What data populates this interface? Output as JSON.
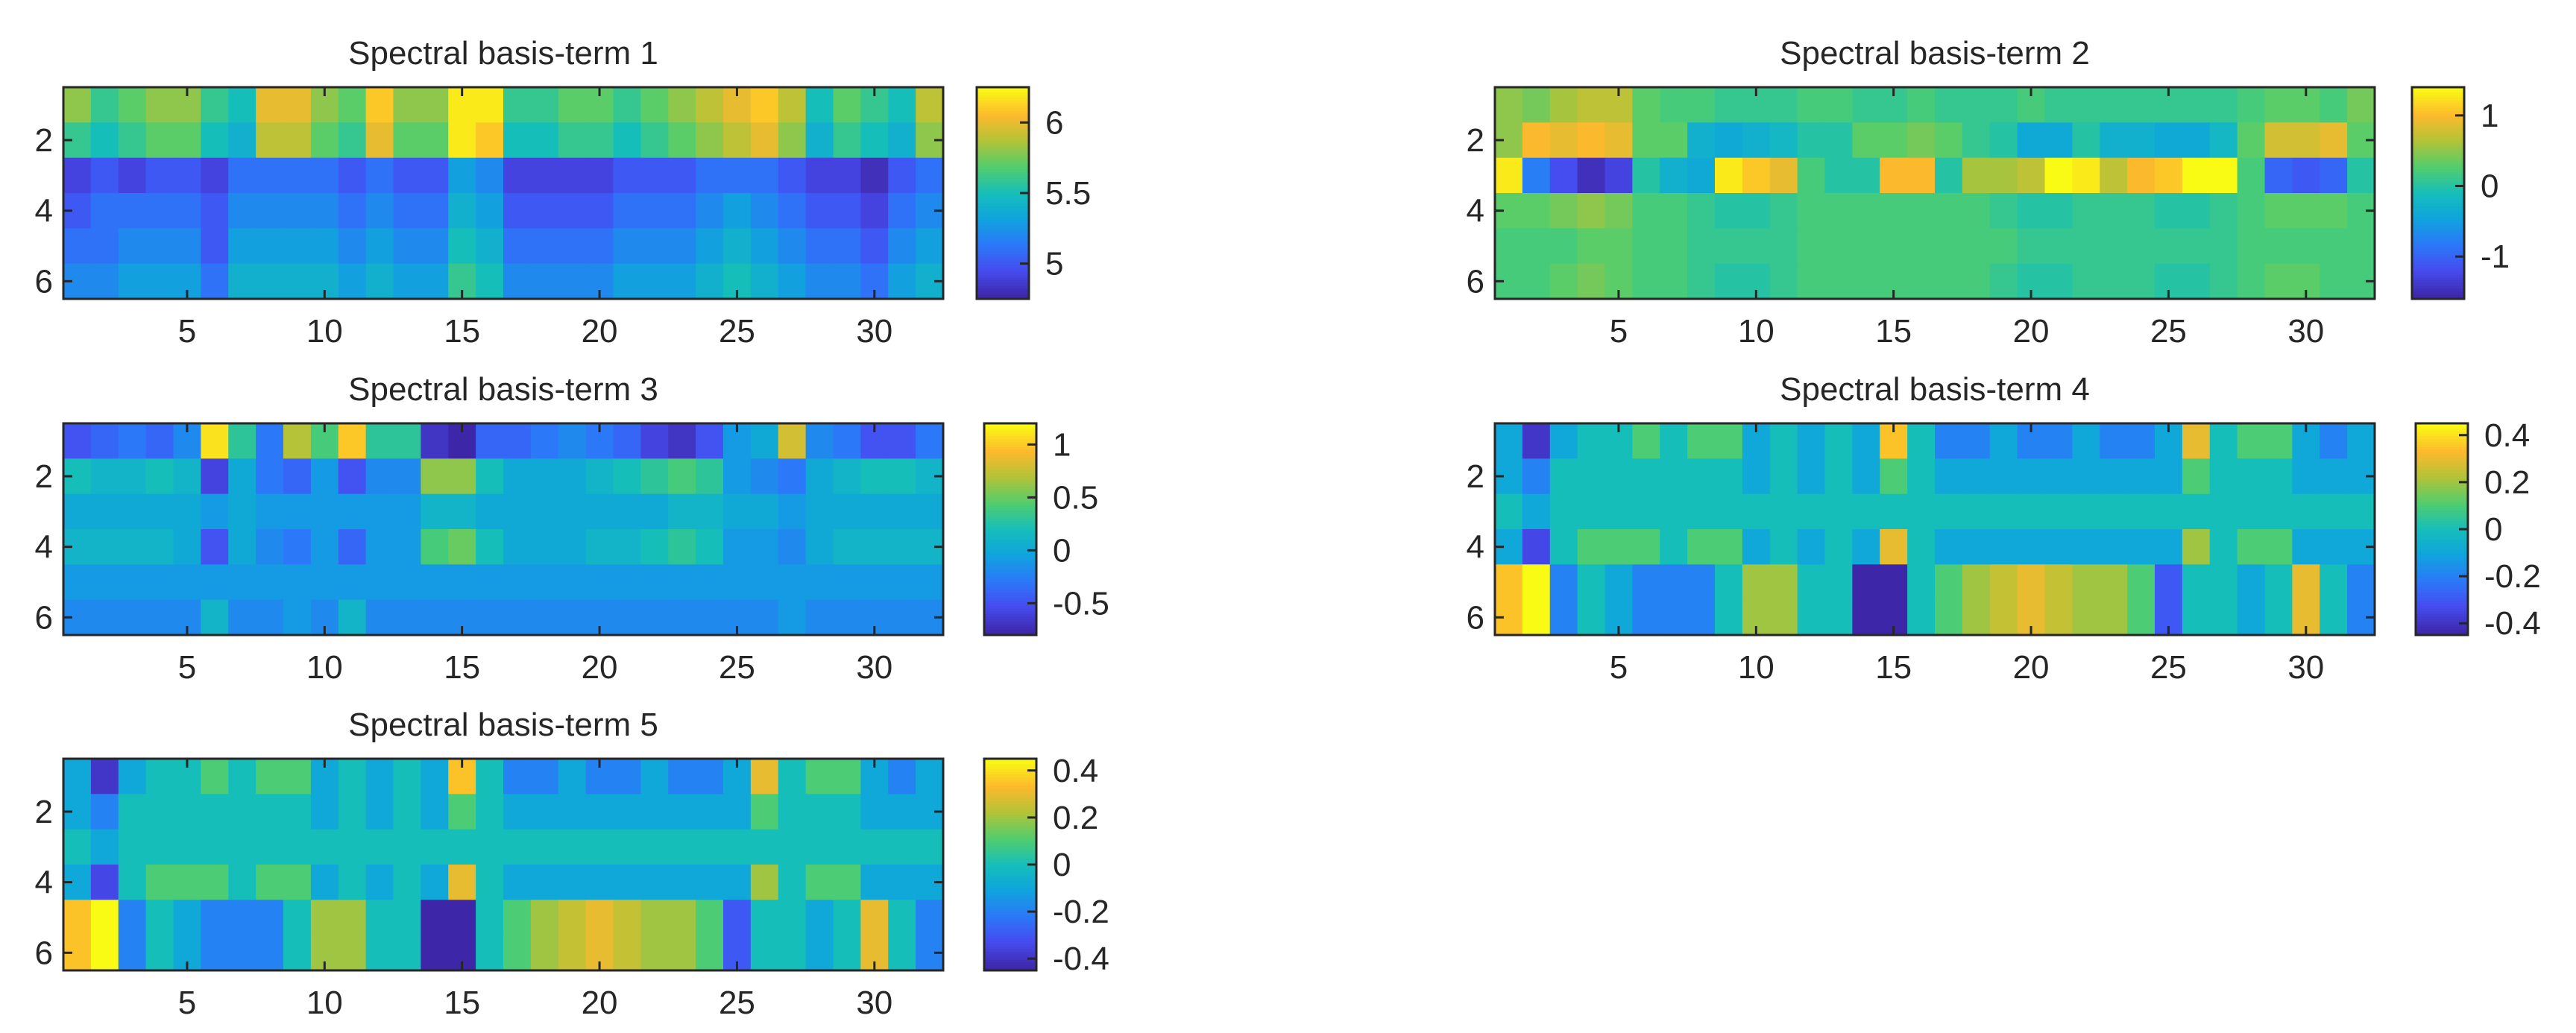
{
  "figure": {
    "layout": "3x2 grid of heatmaps with colorbars",
    "colormap": "parula"
  },
  "chart_data": [
    {
      "type": "heatmap",
      "title": "Spectral basis-term 1",
      "rows": 6,
      "cols": 32,
      "x_ticks": [
        5,
        10,
        15,
        20,
        25,
        30
      ],
      "y_ticks": [
        2,
        4,
        6
      ],
      "clim": [
        4.75,
        6.25
      ],
      "colorbar_ticks": [
        5,
        5.5,
        6
      ],
      "colorbar_labels": [
        "5",
        "5.5",
        "6"
      ],
      "values": [
        [
          5.8,
          5.6,
          5.7,
          5.8,
          5.8,
          5.6,
          5.5,
          6.0,
          6.0,
          5.8,
          5.7,
          6.1,
          5.8,
          5.8,
          6.2,
          6.2,
          5.6,
          5.6,
          5.7,
          5.7,
          5.6,
          5.7,
          5.8,
          5.9,
          6.0,
          6.1,
          5.9,
          5.5,
          5.7,
          5.6,
          5.5,
          5.9
        ],
        [
          5.6,
          5.5,
          5.6,
          5.7,
          5.7,
          5.5,
          5.4,
          5.9,
          5.9,
          5.7,
          5.6,
          6.0,
          5.7,
          5.7,
          6.2,
          6.1,
          5.5,
          5.5,
          5.6,
          5.6,
          5.5,
          5.6,
          5.7,
          5.8,
          5.9,
          6.0,
          5.8,
          5.4,
          5.6,
          5.5,
          5.4,
          5.8
        ],
        [
          4.9,
          5.0,
          4.9,
          5.0,
          5.0,
          4.9,
          5.1,
          5.1,
          5.1,
          5.1,
          5.0,
          5.1,
          5.0,
          5.0,
          5.3,
          5.2,
          4.9,
          4.9,
          4.9,
          4.9,
          5.0,
          5.0,
          5.0,
          5.1,
          5.1,
          5.1,
          5.0,
          4.9,
          4.9,
          4.8,
          5.0,
          5.1
        ],
        [
          5.0,
          5.1,
          5.1,
          5.1,
          5.1,
          5.0,
          5.2,
          5.2,
          5.2,
          5.2,
          5.1,
          5.2,
          5.1,
          5.1,
          5.4,
          5.3,
          5.0,
          5.0,
          5.0,
          5.0,
          5.1,
          5.1,
          5.1,
          5.2,
          5.3,
          5.2,
          5.1,
          5.0,
          5.0,
          4.9,
          5.1,
          5.2
        ],
        [
          5.1,
          5.1,
          5.2,
          5.2,
          5.2,
          5.0,
          5.3,
          5.3,
          5.3,
          5.3,
          5.2,
          5.3,
          5.2,
          5.2,
          5.5,
          5.4,
          5.1,
          5.1,
          5.1,
          5.1,
          5.2,
          5.2,
          5.2,
          5.3,
          5.4,
          5.3,
          5.2,
          5.1,
          5.1,
          5.0,
          5.2,
          5.3
        ],
        [
          5.2,
          5.2,
          5.3,
          5.3,
          5.3,
          5.1,
          5.4,
          5.4,
          5.4,
          5.4,
          5.3,
          5.4,
          5.3,
          5.3,
          5.6,
          5.5,
          5.2,
          5.2,
          5.2,
          5.2,
          5.3,
          5.3,
          5.3,
          5.4,
          5.5,
          5.4,
          5.3,
          5.2,
          5.2,
          5.1,
          5.3,
          5.4
        ]
      ]
    },
    {
      "type": "heatmap",
      "title": "Spectral basis-term 2",
      "rows": 6,
      "cols": 32,
      "x_ticks": [
        5,
        10,
        15,
        20,
        25,
        30
      ],
      "y_ticks": [
        2,
        4,
        6
      ],
      "clim": [
        -1.6,
        1.4
      ],
      "colorbar_ticks": [
        1,
        0,
        -1
      ],
      "colorbar_labels": [
        "1",
        "0",
        "-1"
      ],
      "values": [
        [
          0.5,
          0.4,
          0.6,
          0.7,
          0.7,
          0.3,
          0.2,
          0.2,
          0.1,
          0.1,
          0.1,
          0.2,
          0.2,
          0.1,
          0.1,
          0.2,
          0.1,
          0.1,
          0.1,
          0.2,
          0.1,
          0.1,
          0.1,
          0.1,
          0.1,
          0.1,
          0.1,
          0.2,
          0.3,
          0.3,
          0.2,
          0.4
        ],
        [
          0.5,
          1.0,
          0.9,
          1.0,
          0.9,
          0.3,
          0.3,
          -0.3,
          -0.4,
          -0.3,
          -0.2,
          0.0,
          0.0,
          0.3,
          0.3,
          0.4,
          0.3,
          0.1,
          0.0,
          -0.4,
          -0.4,
          0.0,
          -0.3,
          -0.3,
          -0.4,
          -0.4,
          -0.2,
          0.3,
          0.8,
          0.8,
          0.9,
          0.3
        ],
        [
          1.3,
          -0.8,
          -1.2,
          -1.5,
          -1.3,
          0.0,
          -0.3,
          -0.4,
          1.3,
          1.1,
          0.9,
          0.2,
          0.0,
          0.0,
          1.0,
          1.0,
          0.0,
          0.6,
          0.6,
          0.7,
          1.4,
          1.3,
          0.7,
          1.0,
          1.1,
          1.4,
          1.4,
          0.2,
          -1.0,
          -1.1,
          -1.0,
          0.0
        ],
        [
          0.3,
          0.3,
          0.4,
          0.5,
          0.4,
          0.2,
          0.2,
          0.1,
          0.0,
          0.0,
          0.1,
          0.2,
          0.2,
          0.2,
          0.2,
          0.2,
          0.2,
          0.2,
          0.1,
          0.0,
          0.0,
          0.1,
          0.1,
          0.1,
          0.0,
          0.0,
          0.1,
          0.2,
          0.3,
          0.3,
          0.3,
          0.2
        ],
        [
          0.2,
          0.2,
          0.2,
          0.3,
          0.3,
          0.2,
          0.2,
          0.1,
          0.1,
          0.1,
          0.1,
          0.2,
          0.2,
          0.2,
          0.2,
          0.2,
          0.2,
          0.2,
          0.2,
          0.1,
          0.1,
          0.1,
          0.1,
          0.1,
          0.1,
          0.1,
          0.1,
          0.2,
          0.2,
          0.2,
          0.2,
          0.2
        ],
        [
          0.2,
          0.2,
          0.3,
          0.4,
          0.3,
          0.2,
          0.2,
          0.1,
          0.0,
          0.0,
          0.1,
          0.2,
          0.2,
          0.2,
          0.2,
          0.2,
          0.2,
          0.2,
          0.1,
          0.0,
          0.0,
          0.1,
          0.1,
          0.1,
          0.0,
          0.0,
          0.1,
          0.2,
          0.3,
          0.3,
          0.2,
          0.2
        ]
      ]
    },
    {
      "type": "heatmap",
      "title": "Spectral basis-term 3",
      "rows": 6,
      "cols": 32,
      "x_ticks": [
        5,
        10,
        15,
        20,
        25,
        30
      ],
      "y_ticks": [
        2,
        4,
        6
      ],
      "clim": [
        -0.8,
        1.2
      ],
      "colorbar_ticks": [
        1,
        0.5,
        0,
        -0.5
      ],
      "colorbar_labels": [
        "1",
        "0.5",
        "0",
        "-0.5"
      ],
      "values": [
        [
          -0.5,
          -0.4,
          -0.3,
          -0.4,
          -0.2,
          1.1,
          0.3,
          -0.3,
          0.7,
          0.4,
          1.0,
          0.3,
          0.3,
          -0.7,
          -0.8,
          -0.4,
          -0.4,
          -0.3,
          -0.2,
          -0.3,
          -0.4,
          -0.6,
          -0.7,
          -0.5,
          -0.1,
          0.0,
          0.8,
          -0.2,
          -0.3,
          -0.5,
          -0.5,
          -0.3
        ],
        [
          0.2,
          0.1,
          0.1,
          0.2,
          0.1,
          -0.6,
          0.0,
          -0.3,
          -0.4,
          -0.1,
          -0.5,
          -0.2,
          -0.2,
          0.6,
          0.6,
          0.2,
          0.0,
          0.0,
          0.0,
          0.1,
          0.2,
          0.3,
          0.4,
          0.3,
          -0.1,
          -0.2,
          -0.3,
          0.0,
          0.1,
          0.2,
          0.2,
          0.1
        ],
        [
          0.0,
          0.0,
          0.0,
          0.0,
          0.0,
          -0.1,
          0.0,
          -0.1,
          -0.1,
          -0.1,
          -0.1,
          -0.1,
          -0.1,
          0.1,
          0.1,
          0.0,
          0.0,
          0.0,
          0.0,
          0.0,
          0.0,
          0.0,
          0.1,
          0.1,
          0.0,
          0.0,
          -0.1,
          0.0,
          0.0,
          0.0,
          0.0,
          0.0
        ],
        [
          0.1,
          0.1,
          0.1,
          0.1,
          0.0,
          -0.5,
          0.0,
          -0.2,
          -0.3,
          -0.1,
          -0.4,
          -0.1,
          -0.1,
          0.4,
          0.5,
          0.2,
          0.0,
          0.0,
          0.0,
          0.1,
          0.1,
          0.2,
          0.3,
          0.2,
          -0.1,
          -0.1,
          -0.2,
          0.0,
          0.1,
          0.1,
          0.1,
          0.1
        ],
        [
          -0.1,
          -0.1,
          -0.1,
          -0.1,
          -0.1,
          -0.1,
          -0.1,
          -0.1,
          -0.1,
          -0.1,
          -0.1,
          -0.1,
          -0.1,
          -0.1,
          -0.1,
          -0.1,
          -0.1,
          -0.1,
          -0.1,
          -0.1,
          -0.1,
          -0.1,
          -0.1,
          -0.1,
          -0.1,
          -0.1,
          -0.1,
          -0.1,
          -0.1,
          -0.1,
          -0.1,
          -0.1
        ],
        [
          -0.2,
          -0.2,
          -0.2,
          -0.2,
          -0.2,
          0.1,
          -0.2,
          -0.2,
          -0.1,
          -0.2,
          0.1,
          -0.2,
          -0.2,
          -0.2,
          -0.2,
          -0.2,
          -0.2,
          -0.2,
          -0.2,
          -0.2,
          -0.2,
          -0.2,
          -0.2,
          -0.2,
          -0.2,
          -0.2,
          -0.1,
          -0.2,
          -0.2,
          -0.2,
          -0.2,
          -0.2
        ]
      ]
    },
    {
      "type": "heatmap",
      "title": "Spectral basis-term 4",
      "rows": 6,
      "cols": 32,
      "x_ticks": [
        5,
        10,
        15,
        20,
        25,
        30
      ],
      "y_ticks": [
        2,
        4,
        6
      ],
      "clim": [
        -0.45,
        0.45
      ],
      "colorbar_ticks": [
        0.4,
        0.2,
        0,
        -0.2,
        -0.4
      ],
      "colorbar_labels": [
        "0.4",
        "0.2",
        "0",
        "-0.2",
        "-0.4"
      ],
      "values": [
        [
          -0.1,
          -0.4,
          -0.1,
          0.0,
          0.0,
          0.1,
          0.0,
          0.1,
          0.1,
          -0.1,
          0.0,
          -0.1,
          0.0,
          -0.1,
          0.35,
          0.0,
          -0.2,
          -0.2,
          -0.1,
          -0.2,
          -0.2,
          -0.1,
          -0.2,
          -0.2,
          -0.1,
          0.3,
          0.0,
          0.1,
          0.1,
          -0.1,
          -0.2,
          -0.1
        ],
        [
          -0.1,
          -0.2,
          0.0,
          0.0,
          0.0,
          0.0,
          0.0,
          0.0,
          0.0,
          -0.1,
          0.0,
          -0.1,
          0.0,
          -0.1,
          0.1,
          0.0,
          -0.1,
          -0.1,
          -0.1,
          -0.1,
          -0.1,
          -0.1,
          -0.1,
          -0.1,
          -0.1,
          0.1,
          0.0,
          0.0,
          0.0,
          -0.1,
          -0.1,
          -0.1
        ],
        [
          0.0,
          -0.1,
          0.0,
          0.0,
          0.0,
          0.0,
          0.0,
          0.0,
          0.0,
          0.0,
          0.0,
          0.0,
          0.0,
          0.0,
          0.0,
          0.0,
          0.0,
          0.0,
          0.0,
          0.0,
          0.0,
          0.0,
          0.0,
          0.0,
          0.0,
          0.0,
          0.0,
          0.0,
          0.0,
          0.0,
          0.0,
          0.0
        ],
        [
          -0.1,
          -0.35,
          0.0,
          0.1,
          0.1,
          0.1,
          0.0,
          0.1,
          0.1,
          -0.1,
          0.0,
          -0.1,
          0.0,
          -0.1,
          0.3,
          0.0,
          -0.1,
          -0.1,
          -0.1,
          -0.1,
          -0.1,
          -0.1,
          -0.1,
          -0.1,
          -0.1,
          0.2,
          0.0,
          0.1,
          0.1,
          -0.1,
          -0.1,
          -0.1
        ],
        [
          0.35,
          0.45,
          -0.2,
          0.0,
          -0.1,
          -0.2,
          -0.2,
          -0.2,
          0.0,
          0.2,
          0.2,
          0.0,
          0.0,
          -0.45,
          -0.45,
          0.0,
          0.1,
          0.2,
          0.25,
          0.3,
          0.25,
          0.2,
          0.2,
          0.1,
          -0.3,
          0.0,
          0.0,
          -0.1,
          0.0,
          0.3,
          0.0,
          -0.2
        ],
        [
          0.35,
          0.45,
          -0.2,
          0.0,
          -0.1,
          -0.2,
          -0.2,
          -0.2,
          0.0,
          0.2,
          0.2,
          0.0,
          0.0,
          -0.45,
          -0.45,
          0.0,
          0.1,
          0.2,
          0.25,
          0.3,
          0.25,
          0.2,
          0.2,
          0.1,
          -0.3,
          0.0,
          0.0,
          -0.1,
          0.0,
          0.3,
          0.0,
          -0.2
        ]
      ]
    },
    {
      "type": "heatmap",
      "title": "Spectral basis-term 5",
      "rows": 6,
      "cols": 32,
      "x_ticks": [
        5,
        10,
        15,
        20,
        25,
        30
      ],
      "y_ticks": [
        2,
        4,
        6
      ],
      "clim": [
        -0.45,
        0.45
      ],
      "colorbar_ticks": [
        0.4,
        0.2,
        0,
        -0.2,
        -0.4
      ],
      "colorbar_labels": [
        "0.4",
        "0.2",
        "0",
        "-0.2",
        "-0.4"
      ],
      "values": [
        [
          -0.1,
          -0.4,
          -0.1,
          0.0,
          0.0,
          0.1,
          0.0,
          0.1,
          0.1,
          -0.1,
          0.0,
          -0.1,
          0.0,
          -0.1,
          0.35,
          0.0,
          -0.2,
          -0.2,
          -0.1,
          -0.2,
          -0.2,
          -0.1,
          -0.2,
          -0.2,
          -0.1,
          0.3,
          0.0,
          0.1,
          0.1,
          -0.1,
          -0.2,
          -0.1
        ],
        [
          -0.1,
          -0.2,
          0.0,
          0.0,
          0.0,
          0.0,
          0.0,
          0.0,
          0.0,
          -0.1,
          0.0,
          -0.1,
          0.0,
          -0.1,
          0.1,
          0.0,
          -0.1,
          -0.1,
          -0.1,
          -0.1,
          -0.1,
          -0.1,
          -0.1,
          -0.1,
          -0.1,
          0.1,
          0.0,
          0.0,
          0.0,
          -0.1,
          -0.1,
          -0.1
        ],
        [
          0.0,
          -0.1,
          0.0,
          0.0,
          0.0,
          0.0,
          0.0,
          0.0,
          0.0,
          0.0,
          0.0,
          0.0,
          0.0,
          0.0,
          0.0,
          0.0,
          0.0,
          0.0,
          0.0,
          0.0,
          0.0,
          0.0,
          0.0,
          0.0,
          0.0,
          0.0,
          0.0,
          0.0,
          0.0,
          0.0,
          0.0,
          0.0
        ],
        [
          -0.1,
          -0.35,
          0.0,
          0.1,
          0.1,
          0.1,
          0.0,
          0.1,
          0.1,
          -0.1,
          0.0,
          -0.1,
          0.0,
          -0.1,
          0.3,
          0.0,
          -0.1,
          -0.1,
          -0.1,
          -0.1,
          -0.1,
          -0.1,
          -0.1,
          -0.1,
          -0.1,
          0.2,
          0.0,
          0.1,
          0.1,
          -0.1,
          -0.1,
          -0.1
        ],
        [
          0.35,
          0.45,
          -0.2,
          0.0,
          -0.1,
          -0.2,
          -0.2,
          -0.2,
          0.0,
          0.2,
          0.2,
          0.0,
          0.0,
          -0.45,
          -0.45,
          0.0,
          0.1,
          0.2,
          0.25,
          0.3,
          0.25,
          0.2,
          0.2,
          0.1,
          -0.3,
          0.0,
          0.0,
          -0.1,
          0.0,
          0.3,
          0.0,
          -0.2
        ],
        [
          0.35,
          0.45,
          -0.2,
          0.0,
          -0.1,
          -0.2,
          -0.2,
          -0.2,
          0.0,
          0.2,
          0.2,
          0.0,
          0.0,
          -0.45,
          -0.45,
          0.0,
          0.1,
          0.2,
          0.25,
          0.3,
          0.25,
          0.2,
          0.2,
          0.1,
          -0.3,
          0.0,
          0.0,
          -0.1,
          0.0,
          0.3,
          0.0,
          -0.2
        ]
      ]
    }
  ]
}
